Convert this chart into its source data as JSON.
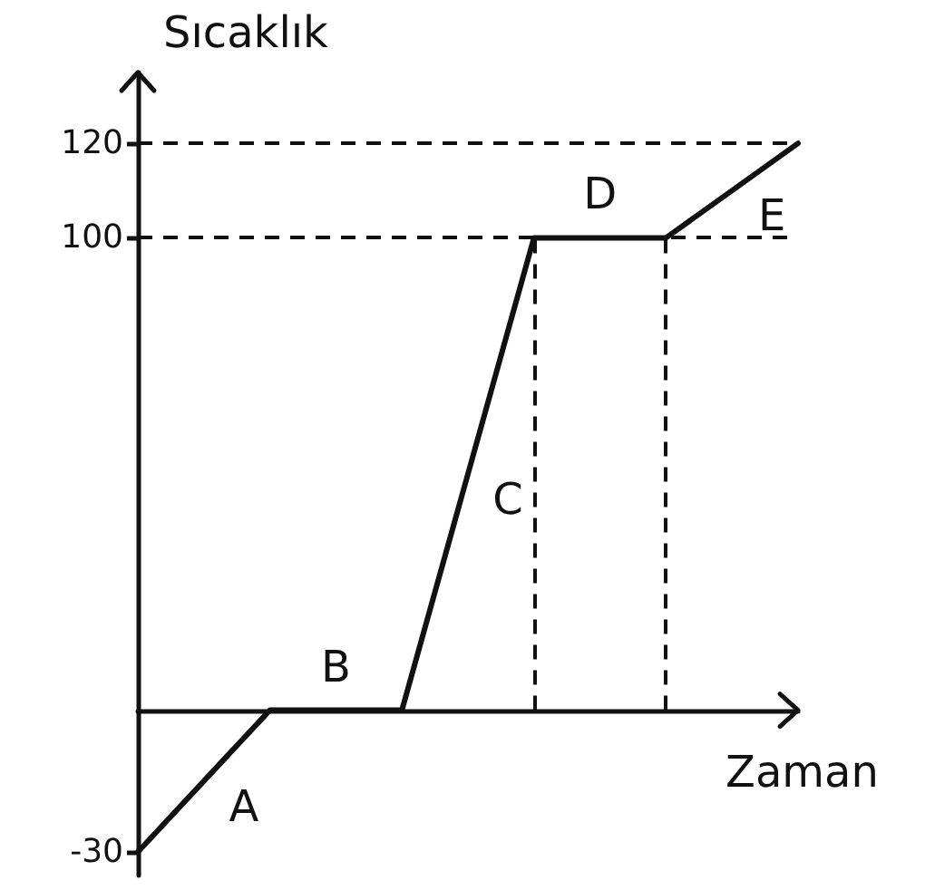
{
  "chart_data": {
    "type": "line",
    "xlabel": "Zaman",
    "ylabel": "Sıcaklık",
    "categories": [
      null,
      null,
      null,
      null,
      null,
      null
    ],
    "series": [
      {
        "color": "#111111",
        "values": [
          -30,
          0,
          0,
          100,
          100,
          120
        ]
      }
    ],
    "ylim": [
      -35,
      135
    ],
    "yticks": [
      -30,
      100,
      120
    ],
    "ref_lines": [
      {
        "axis": "y",
        "value": 100,
        "line_style": "dashed",
        "color": "#111111"
      },
      {
        "axis": "y",
        "value": 120,
        "line_style": "dashed",
        "color": "#111111"
      }
    ],
    "annotations": [
      "A",
      "B",
      "C",
      "D",
      "E"
    ],
    "marker": "none",
    "line_style": "solid",
    "grid": false
  }
}
